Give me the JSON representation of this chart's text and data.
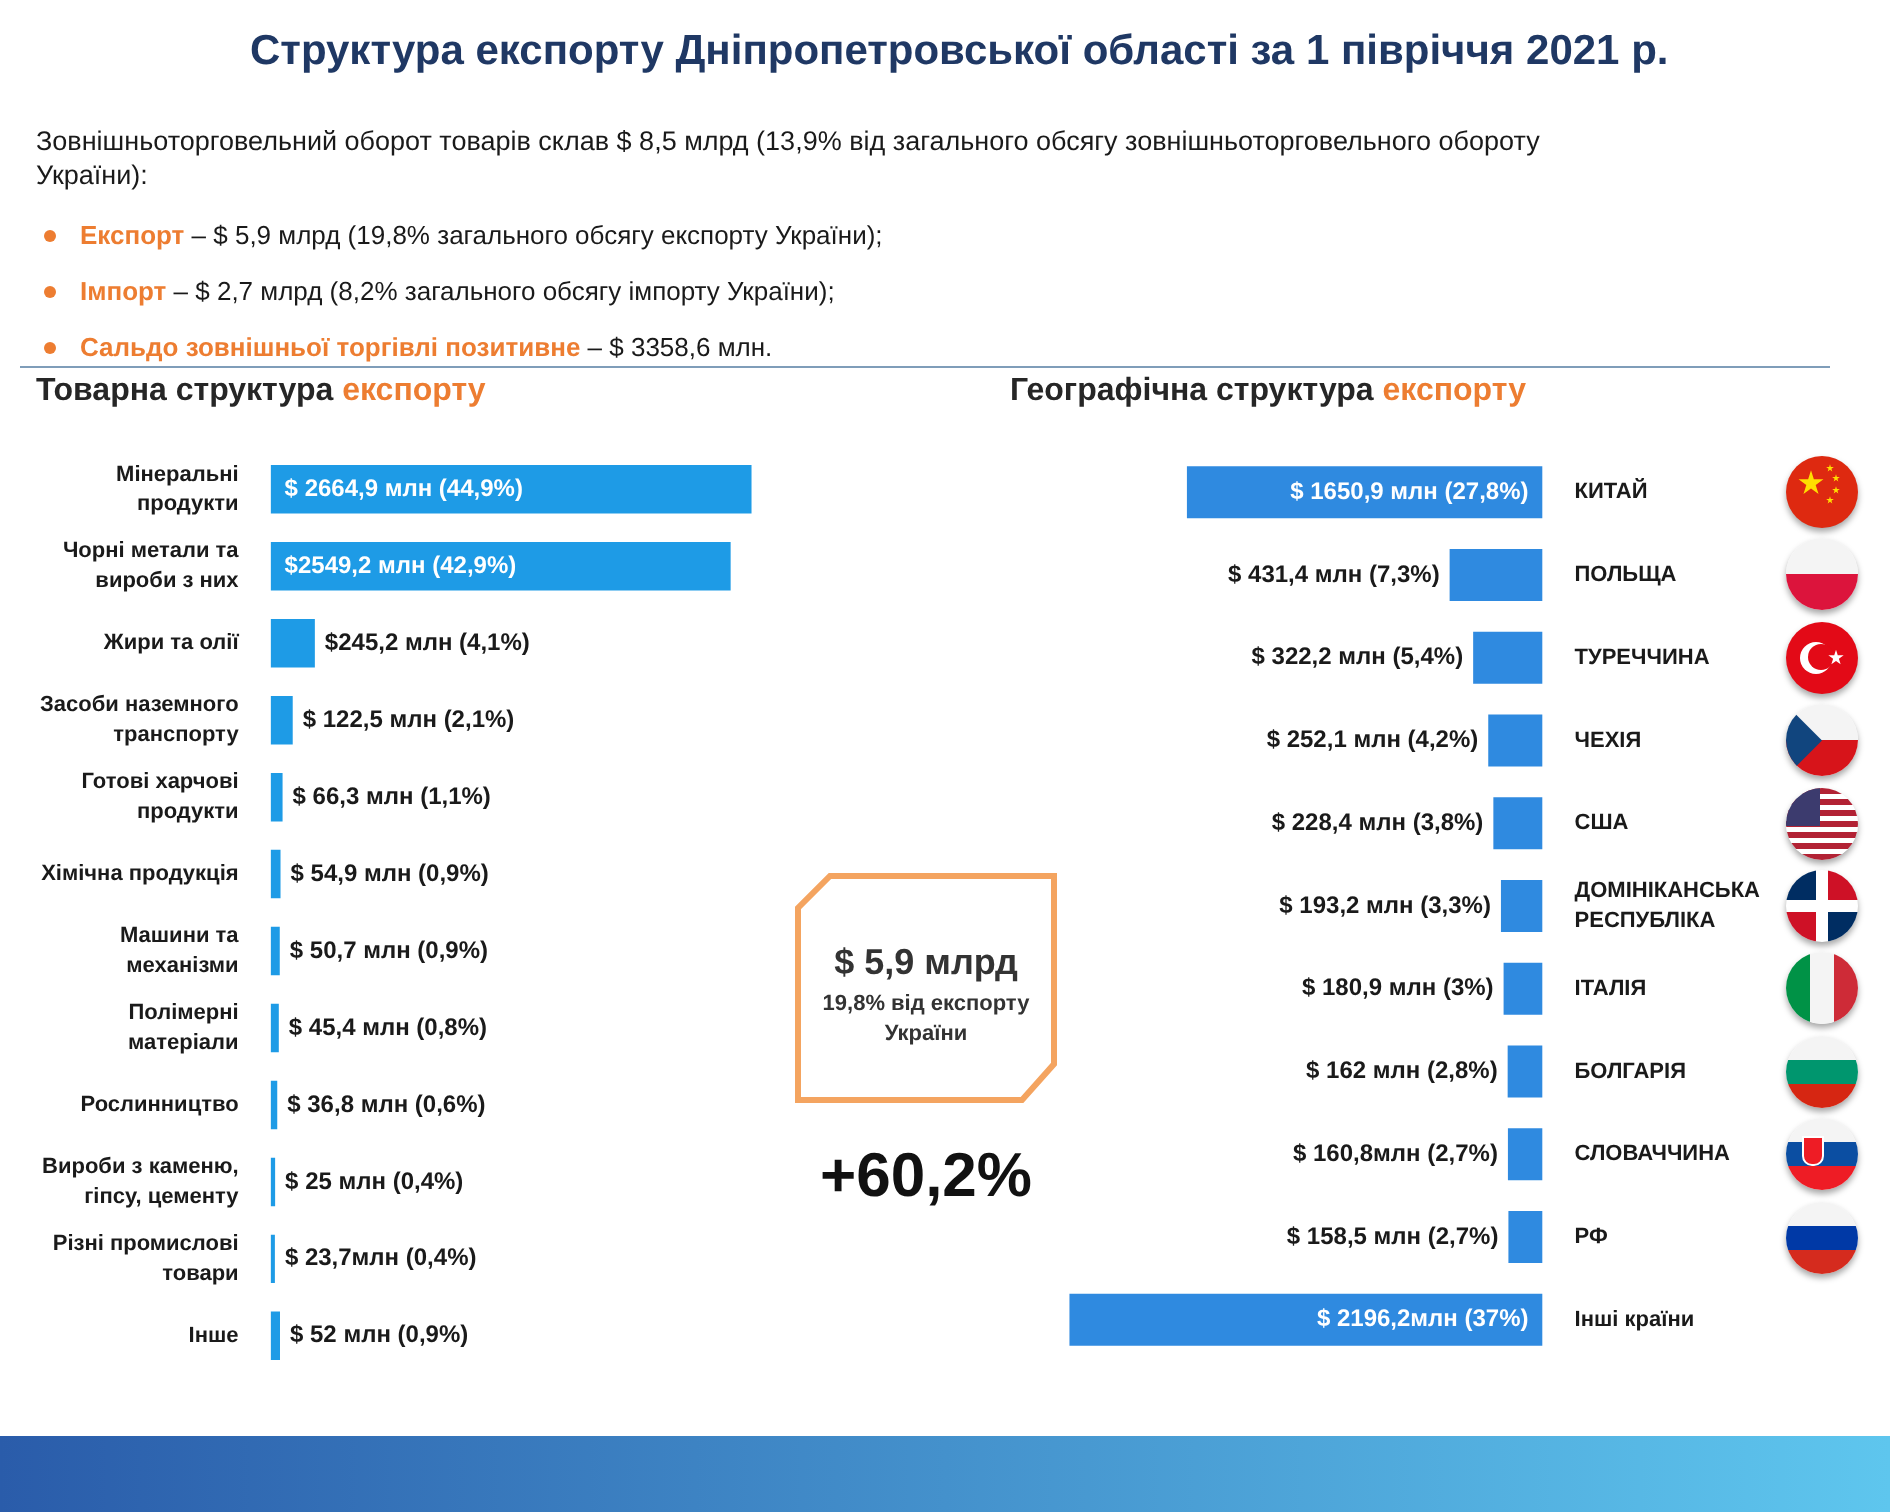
{
  "chart_data": [
    {
      "type": "other",
      "title": "Структура експорту Дніпропетровської області за 1 півріччя 2021 р.",
      "annotations": [
        "Зовнішньоторговельний оборот товарів склав $ 8,5 млрд (13,9% від загального обсягу зовнішньоторговельного обороту України):",
        "Експорт – $ 5,9 млрд (19,8% загального обсягу експорту України);",
        "Імпорт – $ 2,7 млрд (8,2% загального обсягу імпорту України);",
        "Сальдо зовнішньої торгівлі позитивне – $ 3358,6 млн."
      ]
    },
    {
      "type": "bar",
      "orientation": "horizontal",
      "title": "Товарна структура експорту",
      "categories": [
        "Мінеральні продукти",
        "Чорні метали та вироби з них",
        "Жири та олії",
        "Засоби наземного транспорту",
        "Готові харчові продукти",
        "Хімічна продукція",
        "Машини та механізми",
        "Полімерні матеріали",
        "Рослинництво",
        "Вироби з каменю, гіпсу, цементу",
        "Різні промислові товари",
        "Інше"
      ],
      "values": [
        2664.9,
        2549.2,
        245.2,
        122.5,
        66.3,
        54.9,
        50.7,
        45.4,
        36.8,
        25,
        23.7,
        52
      ],
      "color": "#1e9be6",
      "value_labels": [
        "$ 2664,9 млн (44,9%)",
        "$2549,2 млн (42,9%)",
        "$245,2 млн (4,1%)",
        "$ 122,5 млн (2,1%)",
        "$ 66,3 млн (1,1%)",
        "$ 54,9 млн (0,9%)",
        "$ 50,7 млн (0,9%)",
        "$ 45,4 млн (0,8%)",
        "$ 36,8 млн (0,6%)",
        "$ 25 млн (0,4%)",
        "$ 23,7млн (0,4%)",
        "$ 52 млн (0,9%)"
      ],
      "tick_labels": "y"
    },
    {
      "type": "other",
      "annotations": [
        "$ 5,9 млрд",
        "19,8% від експорту України",
        "+60,2%"
      ]
    },
    {
      "type": "bar",
      "orientation": "horizontal",
      "title": "Географічна структура експорту",
      "categories": [
        "КИТАЙ",
        "ПОЛЬЩА",
        "ТУРЕЧЧИНА",
        "ЧЕХІЯ",
        "США",
        "ДОМІНІКАНСЬКА РЕСПУБЛІКА",
        "ІТАЛІЯ",
        "БОЛГАРІЯ",
        "СЛОВАЧЧИНА",
        "РФ",
        "Інші країни"
      ],
      "values": [
        1650.9,
        431.4,
        322.2,
        252.1,
        228.4,
        193.2,
        180.9,
        162,
        160.8,
        158.5,
        2196.2
      ],
      "color": "#2f8ae0",
      "value_labels": [
        "$ 1650,9 млн (27,8%)",
        "$ 431,4 млн (7,3%)",
        "$ 322,2 млн (5,4%)",
        "$ 252,1 млн (4,2%)",
        "$ 228,4 млн (3,8%)",
        "$ 193,2 млн (3,3%)",
        "$ 180,9 млн (3%)",
        "$ 162 млн (2,8%)",
        "$ 160,8млн (2,7%)",
        "$ 158,5 млн (2,7%)",
        "$ 2196,2млн (37%)"
      ],
      "tick_labels": "y"
    }
  ]
}
